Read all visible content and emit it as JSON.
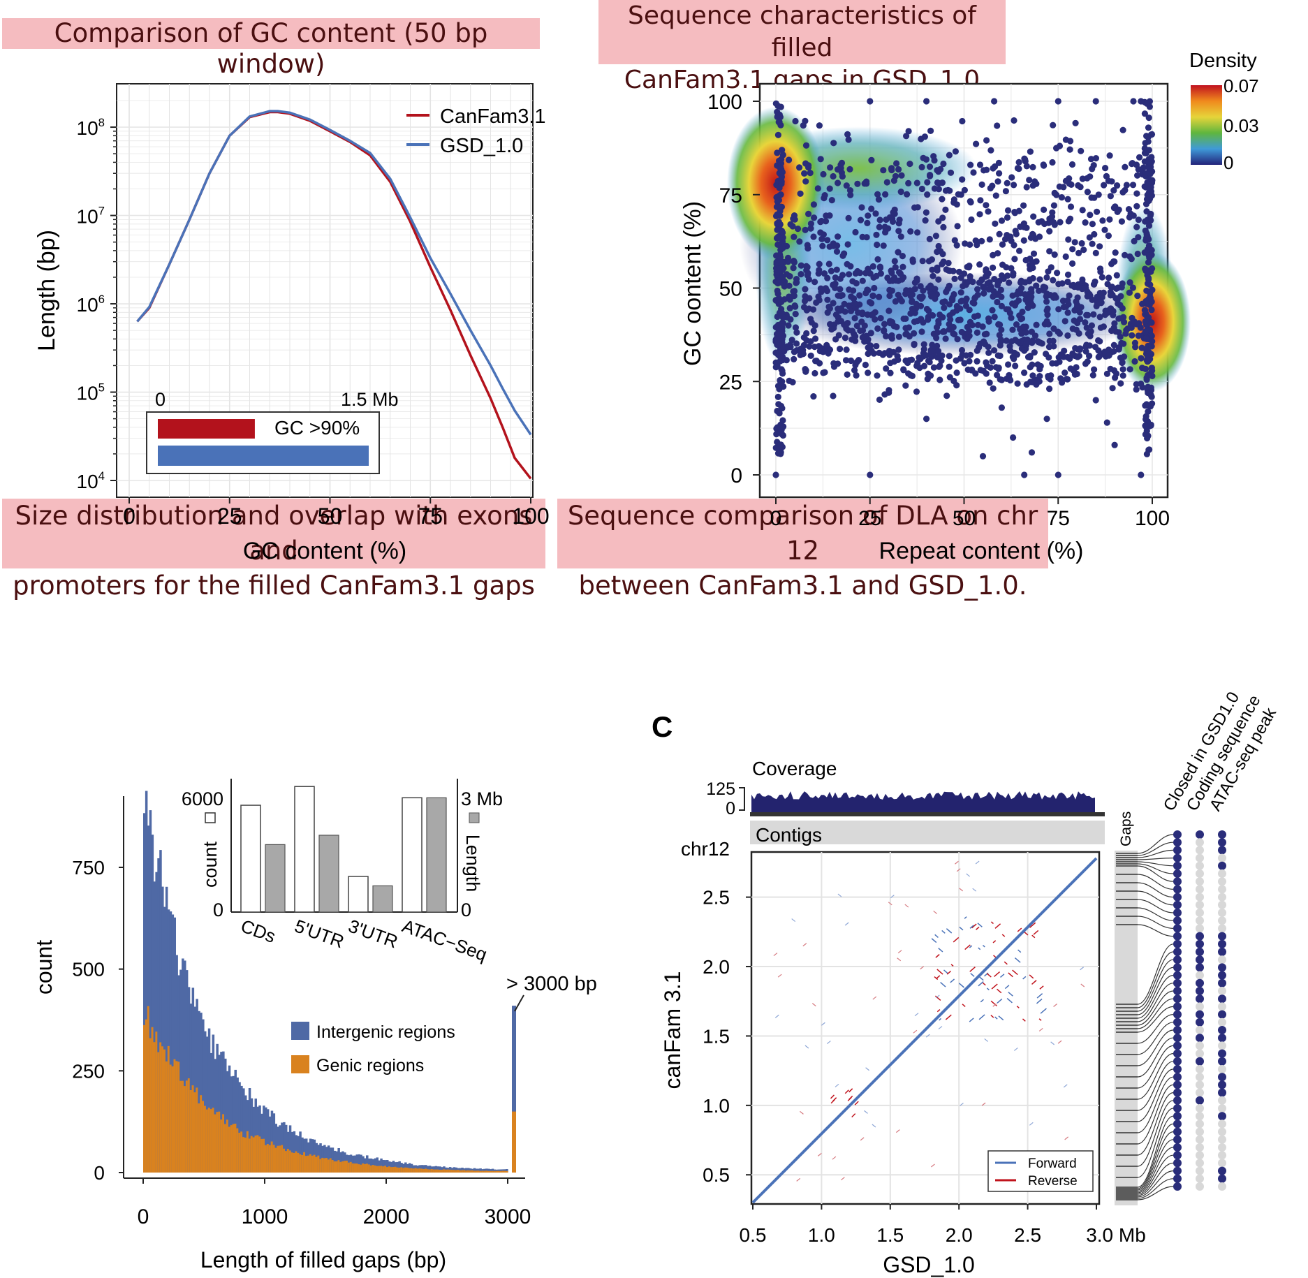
{
  "banners": {
    "gc": "Comparison of GC content (50 bp window)",
    "seq_line1": "Sequence characteristics of filled",
    "seq_line2": "CanFam3.1 gaps in GSD_1.0",
    "size_line1": "Size distribution and overlap with exons and",
    "size_line2": "promoters for the filled CanFam3.1 gaps",
    "dla_line1": "Sequence comparison of DLA on chr 12",
    "dla_line2": "between CanFam3.1 and GSD_1.0."
  },
  "colors": {
    "canfam": "#b3121c",
    "gsd": "#4a72b8",
    "intergenic": "#4f69a5",
    "genic": "#d9821f",
    "dot": "#2a2d7a"
  },
  "chart_data": [
    {
      "id": "gc",
      "type": "line",
      "xlabel": "GC content (%)",
      "ylabel": "Length (bp)",
      "xlim": [
        0,
        100
      ],
      "ylim": [
        10000,
        200000000
      ],
      "yscale": "log",
      "xticks": [
        "0",
        "25",
        "50",
        "75",
        "100"
      ],
      "yticks": [
        "10^4",
        "10^5",
        "10^6",
        "10^7",
        "10^8"
      ],
      "legend_position": "top-right",
      "series": [
        {
          "name": "CanFam3.1",
          "x": [
            2,
            5,
            10,
            15,
            20,
            25,
            30,
            35,
            37,
            40,
            45,
            50,
            55,
            60,
            65,
            70,
            75,
            80,
            85,
            90,
            93,
            96,
            100
          ],
          "y": [
            630000,
            900000,
            2800000,
            9000000,
            30000000,
            80000000,
            130000000,
            148000000,
            148000000,
            142000000,
            118000000,
            90000000,
            68000000,
            48000000,
            24000000,
            8500000,
            2600000,
            850000,
            260000,
            85000,
            40000,
            18000,
            10500
          ]
        },
        {
          "name": "GSD_1.0",
          "x": [
            2,
            5,
            10,
            15,
            20,
            25,
            30,
            35,
            37,
            40,
            45,
            50,
            55,
            60,
            65,
            70,
            75,
            80,
            85,
            90,
            93,
            96,
            100
          ],
          "y": [
            630000,
            920000,
            2800000,
            9000000,
            30000000,
            80000000,
            132000000,
            152000000,
            152000000,
            146000000,
            122000000,
            93000000,
            70000000,
            51000000,
            26000000,
            9500000,
            3300000,
            1300000,
            500000,
            200000,
            110000,
            62000,
            33000
          ]
        }
      ],
      "inset": {
        "type": "bar",
        "label": "GC >90%",
        "tick_labels": [
          "0",
          "1.5 Mb"
        ],
        "xlim_mb": [
          0,
          1.5
        ],
        "values_mb": [
          {
            "name": "CanFam3.1",
            "value": 0.69
          },
          {
            "name": "GSD_1.0",
            "value": 1.5
          }
        ]
      }
    },
    {
      "id": "density",
      "type": "scatter",
      "xlabel": "Repeat content (%)",
      "ylabel": "GC oontent (%)",
      "xlim": [
        0,
        100
      ],
      "ylim": [
        0,
        100
      ],
      "xticks": [
        "0",
        "25",
        "50",
        "75",
        "100"
      ],
      "yticks": [
        "0",
        "25",
        "50",
        "75",
        "100"
      ],
      "colorbar": {
        "title": "Density",
        "ticks": [
          "0.07",
          "0.03",
          "0"
        ],
        "range": [
          0,
          0.07
        ]
      },
      "clusters": [
        {
          "x": 0,
          "y": 78,
          "density": 0.07
        },
        {
          "x": 100,
          "y": 41,
          "density": 0.07
        },
        {
          "x": 50,
          "y": 43,
          "density": 0.02
        },
        {
          "x": 25,
          "y": 82,
          "density": 0.03
        }
      ],
      "outlier_points": [
        [
          25,
          100
        ],
        [
          40,
          100
        ],
        [
          58,
          100
        ],
        [
          75,
          100
        ],
        [
          85,
          100
        ],
        [
          95,
          100
        ],
        [
          97,
          100
        ],
        [
          0,
          0
        ],
        [
          25,
          0
        ],
        [
          66,
          0
        ],
        [
          75,
          0
        ],
        [
          97,
          0
        ],
        [
          55,
          5
        ],
        [
          68,
          6
        ],
        [
          90,
          8
        ],
        [
          63,
          10
        ],
        [
          72,
          15
        ],
        [
          85,
          20
        ],
        [
          40,
          15
        ],
        [
          10,
          21
        ],
        [
          30,
          22
        ],
        [
          48,
          24
        ],
        [
          52,
          28
        ],
        [
          80,
          27
        ],
        [
          92,
          30
        ],
        [
          8,
          28
        ],
        [
          35,
          30
        ],
        [
          60,
          18
        ],
        [
          70,
          25
        ],
        [
          88,
          14
        ]
      ]
    },
    {
      "id": "histogram",
      "type": "bar",
      "xlabel": "Length of filled gaps (bp)",
      "ylabel": "count",
      "xlim": [
        0,
        3000
      ],
      "ylim": [
        0,
        940
      ],
      "xticks": [
        "0",
        "1000",
        "2000",
        "3000"
      ],
      "yticks": [
        "0",
        "250",
        "500",
        "750"
      ],
      "annotation": "> 3000 bp",
      "legend_position": "center-right",
      "series": [
        {
          "name": "Intergenic regions",
          "x": [
            50,
            150,
            250,
            350,
            450,
            550,
            650,
            750,
            850,
            950,
            1050,
            1150,
            1250,
            1350,
            1450,
            1550,
            1650,
            1750,
            1850,
            1950,
            2050,
            2150,
            2250,
            2350,
            2450,
            2550,
            2650,
            2750,
            2850,
            2950,
            ">3000"
          ],
          "values": [
            880,
            770,
            640,
            520,
            430,
            360,
            300,
            250,
            210,
            180,
            150,
            125,
            105,
            90,
            75,
            65,
            55,
            45,
            40,
            35,
            28,
            25,
            20,
            18,
            15,
            13,
            12,
            10,
            9,
            8,
            410
          ]
        },
        {
          "name": "Genic regions",
          "x": [
            50,
            150,
            250,
            350,
            450,
            550,
            650,
            750,
            850,
            950,
            1050,
            1150,
            1250,
            1350,
            1450,
            1550,
            1650,
            1750,
            1850,
            1950,
            2050,
            2150,
            2250,
            2350,
            2450,
            2550,
            2650,
            2750,
            2850,
            2950,
            ">3000"
          ],
          "values": [
            390,
            340,
            290,
            240,
            200,
            170,
            145,
            120,
            100,
            88,
            75,
            64,
            55,
            47,
            40,
            34,
            29,
            25,
            21,
            18,
            15,
            13,
            11,
            9,
            8,
            7,
            6,
            5,
            4,
            4,
            150
          ]
        }
      ],
      "inset": {
        "type": "bar",
        "categories": [
          "CDs",
          "5'UTR",
          "3'UTR",
          "ATAC−Seq"
        ],
        "left_axis_label": "count",
        "right_axis_label": "Length",
        "left_ticks": [
          "0",
          "6000"
        ],
        "right_ticks": [
          "0",
          "3 Mb"
        ],
        "count": [
          5700,
          6700,
          1900,
          6100
        ],
        "length_mb": [
          1.8,
          2.05,
          0.7,
          3.05
        ]
      }
    },
    {
      "id": "dotplot",
      "type": "scatter",
      "panel_label": "C",
      "xlabel": "GSD_1.0",
      "ylabel": "canFam 3.1",
      "xlim": [
        0.5,
        3.0
      ],
      "ylim": [
        0.3,
        2.8
      ],
      "xticks": [
        "0.5",
        "1.0",
        "1.5",
        "2.0",
        "2.5",
        "3.0 Mb"
      ],
      "yticks": [
        "0.5",
        "1.0",
        "1.5",
        "2.0",
        "2.5"
      ],
      "chrom_label": "chr12",
      "coverage": {
        "label": "Coverage",
        "ticks": [
          "125",
          "0"
        ]
      },
      "contigs_label": "Contigs",
      "gaps_label": "Gaps",
      "legend": [
        "Forward",
        "Reverse"
      ],
      "legend_position": "bottom-right",
      "track_labels": [
        "Closed in GSD1.0",
        "Coding sequence",
        "ATAC-seq peak"
      ],
      "gap_count": 46
    }
  ]
}
